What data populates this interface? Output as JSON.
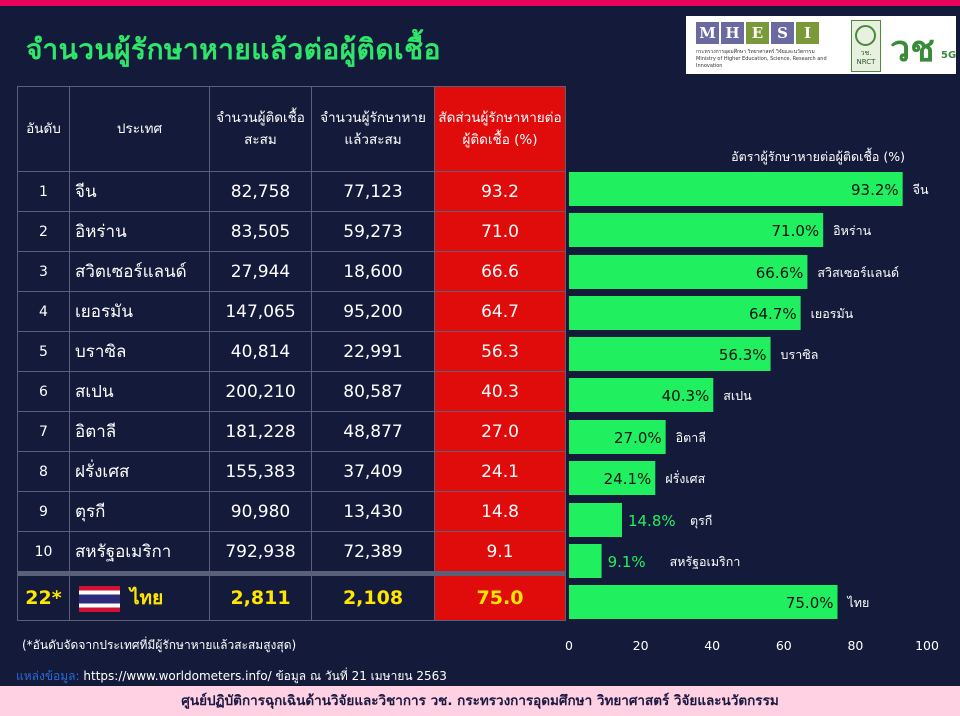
{
  "title": "จำนวนผู้รักษาหายแล้วต่อผู้ติดเชื้อ",
  "logos": {
    "mhesi_letters": [
      "M",
      "H",
      "E",
      "S",
      "I"
    ],
    "mhesi_colors": [
      "#6a6aa0",
      "#6a6aa0",
      "#7a9a3a",
      "#6a6aa0",
      "#7a9a3a"
    ],
    "mhesi_sub_thai": "กระทรวงการอุดมศึกษา วิทยาศาสตร์ วิจัยและนวัตกรรม",
    "mhesi_sub_en": "Ministry of Higher Education, Science, Research and Innovation",
    "nrct_thai": "วช.",
    "nrct_en": "NRCT",
    "vch_mark": "วช",
    "vch_5g": "5G"
  },
  "table": {
    "headers": [
      "อันดับ",
      "ประเทศ",
      "จำนวนผู้ติดเชื้อสะสม",
      "จำนวนผู้รักษาหายแล้วสะสม",
      "สัดส่วนผู้รักษาหายต่อผู้ติดเชื้อ (%)"
    ],
    "rows": [
      {
        "rank": "1",
        "country": "จีน",
        "infected": "82,758",
        "recovered": "77,123",
        "ratio": "93.2"
      },
      {
        "rank": "2",
        "country": "อิหร่าน",
        "infected": "83,505",
        "recovered": "59,273",
        "ratio": "71.0"
      },
      {
        "rank": "3",
        "country": "สวิตเซอร์แลนด์",
        "infected": "27,944",
        "recovered": "18,600",
        "ratio": "66.6"
      },
      {
        "rank": "4",
        "country": "เยอรมัน",
        "infected": "147,065",
        "recovered": "95,200",
        "ratio": "64.7"
      },
      {
        "rank": "5",
        "country": "บราซิล",
        "infected": "40,814",
        "recovered": "22,991",
        "ratio": "56.3"
      },
      {
        "rank": "6",
        "country": "สเปน",
        "infected": "200,210",
        "recovered": "80,587",
        "ratio": "40.3"
      },
      {
        "rank": "7",
        "country": "อิตาลี",
        "infected": "181,228",
        "recovered": "48,877",
        "ratio": "27.0"
      },
      {
        "rank": "8",
        "country": "ฝรั่งเศส",
        "infected": "155,383",
        "recovered": "37,409",
        "ratio": "24.1"
      },
      {
        "rank": "9",
        "country": "ตุรกี",
        "infected": "90,980",
        "recovered": "13,430",
        "ratio": "14.8"
      },
      {
        "rank": "10",
        "country": "สหรัฐอเมริกา",
        "infected": "792,938",
        "recovered": "72,389",
        "ratio": "9.1"
      }
    ],
    "thailand": {
      "rank": "22*",
      "country": "ไทย",
      "infected": "2,811",
      "recovered": "2,108",
      "ratio": "75.0"
    }
  },
  "footnote": "(*อันดับจัดจากประเทศที่มีผู้รักษาหายแล้วสะสมสูงสุด)",
  "source": {
    "label": "แหล่งข้อมูล:",
    "text": "https://www.worldometers.info/ ข้อมูล ณ วันที่ 21 เมษายน 2563"
  },
  "bottom_bar": "ศูนย์ปฏิบัติการฉุกเฉินด้านวิจัยและวิชาการ   วช.   กระทรวงการอุดมศึกษา วิทยาศาสตร์ วิจัยและนวัตกรรม",
  "colors": {
    "bar": "#20f060",
    "ratio_bg": "#e00b0b",
    "title": "#2ee66a",
    "thai_text": "#ffe600"
  },
  "chart_data": {
    "type": "bar",
    "orientation": "horizontal",
    "title": "อัตราผู้รักษาหายต่อผู้ติดเชื้อ (%)",
    "categories": [
      "จีน",
      "อิหร่าน",
      "สวิสเซอร์แลนด์",
      "เยอรมัน",
      "บราซิล",
      "สเปน",
      "อิตาลี",
      "ฝรั่งเศส",
      "ตุรกี",
      "สหรัฐอเมริกา",
      "ไทย"
    ],
    "values": [
      93.2,
      71.0,
      66.6,
      64.7,
      56.3,
      40.3,
      27.0,
      24.1,
      14.8,
      9.1,
      75.0
    ],
    "value_labels": [
      "93.2%",
      "71.0%",
      "66.6%",
      "64.7%",
      "56.3%",
      "40.3%",
      "27.0%",
      "24.1%",
      "14.8%",
      "9.1%",
      "75.0%"
    ],
    "xlim": [
      0,
      100
    ],
    "xticks": [
      "0",
      "20",
      "40",
      "60",
      "80",
      "100"
    ],
    "grid": false
  }
}
